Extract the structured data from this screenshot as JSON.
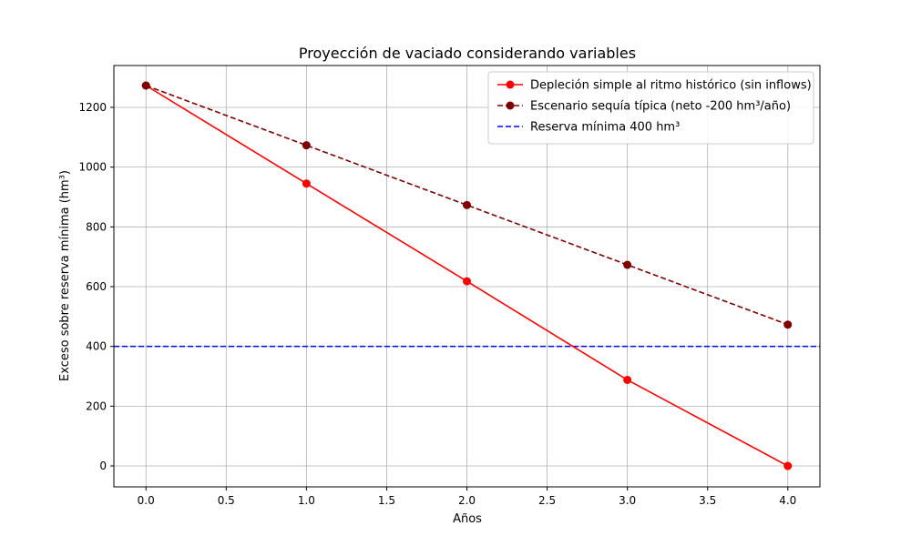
{
  "chart_data": {
    "type": "line",
    "title": "Proyección de vaciado considerando variables",
    "xlabel": "Años",
    "ylabel": "Exceso sobre reserva mínima (hm³)",
    "xlim": [
      -0.2,
      4.2
    ],
    "ylim": [
      -70,
      1340
    ],
    "xticks": [
      0.0,
      0.5,
      1.0,
      1.5,
      2.0,
      2.5,
      3.0,
      3.5,
      4.0
    ],
    "xtick_labels": [
      "0.0",
      "0.5",
      "1.0",
      "1.5",
      "2.0",
      "2.5",
      "3.0",
      "3.5",
      "4.0"
    ],
    "yticks": [
      0,
      200,
      400,
      600,
      800,
      1000,
      1200
    ],
    "ytick_labels": [
      "0",
      "200",
      "400",
      "600",
      "800",
      "1000",
      "1200"
    ],
    "grid": true,
    "legend_position": "top-right",
    "series": [
      {
        "name": "Depleción simple al ritmo histórico (sin inflows)",
        "x": [
          0,
          1,
          2,
          3,
          4
        ],
        "values": [
          1273,
          945,
          618,
          288,
          0
        ],
        "color": "#ff0000",
        "style": "solid",
        "marker": "circle"
      },
      {
        "name": "Escenario sequía típica (neto -200 hm³/año)",
        "x": [
          0,
          1,
          2,
          3,
          4
        ],
        "values": [
          1273,
          1073,
          873,
          673,
          473
        ],
        "color": "#800000",
        "style": "dashed",
        "marker": "circle"
      }
    ],
    "hlines": [
      {
        "name": "Reserva mínima 400 hm³",
        "y": 400,
        "color": "#0000ff",
        "style": "dashed"
      }
    ]
  }
}
